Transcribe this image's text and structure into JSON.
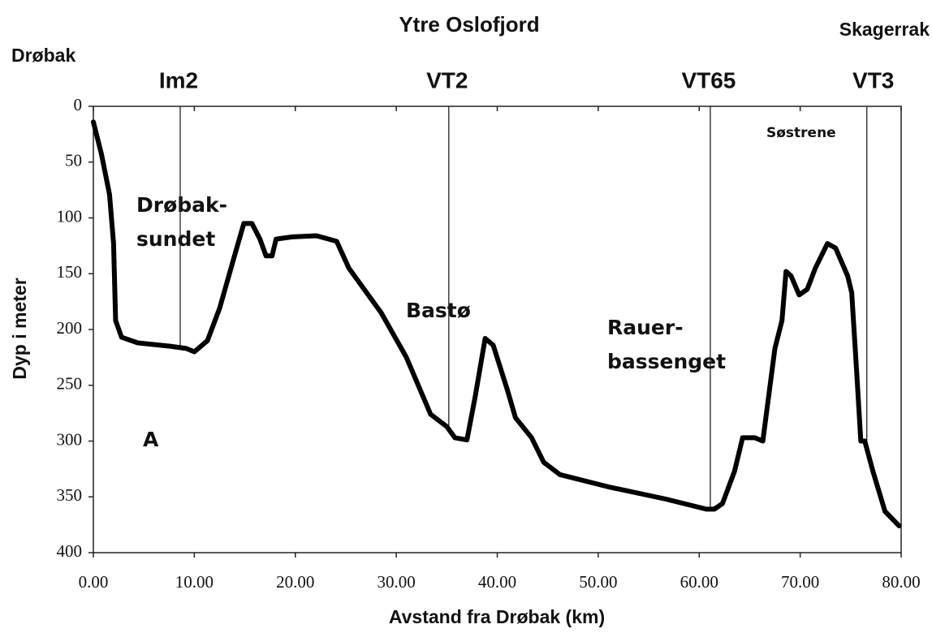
{
  "chart_data": {
    "type": "line",
    "title": "Ytre Oslofjord",
    "left_label": "Drøbak",
    "right_label": "Skagerrak",
    "xlabel": "Avstand fra Drøbak (km)",
    "ylabel": "Dyp i meter",
    "y_inverted": true,
    "xlim": [
      0,
      80
    ],
    "ylim": [
      0,
      400
    ],
    "xticks": [
      {
        "value": 0,
        "label": "0.00"
      },
      {
        "value": 10,
        "label": "10.00"
      },
      {
        "value": 20,
        "label": "20.00"
      },
      {
        "value": 30,
        "label": "30.00"
      },
      {
        "value": 40,
        "label": "40.00"
      },
      {
        "value": 50,
        "label": "50.00"
      },
      {
        "value": 60,
        "label": "60.00"
      },
      {
        "value": 70,
        "label": "70.00"
      },
      {
        "value": 80,
        "label": "80.00"
      }
    ],
    "yticks": [
      0,
      50,
      100,
      150,
      200,
      250,
      300,
      350,
      400
    ],
    "x": [
      0,
      0.8,
      1.6,
      2.0,
      2.2,
      2.8,
      4.4,
      7.6,
      9.2,
      10.0,
      11.3,
      12.5,
      14.1,
      14.9,
      15.7,
      16.5,
      17.1,
      17.7,
      18.1,
      19.7,
      22.1,
      24.1,
      25.3,
      28.5,
      31.0,
      33.4,
      35.0,
      35.8,
      37.0,
      37.8,
      38.8,
      39.6,
      41.0,
      41.8,
      43.4,
      44.6,
      46.2,
      51.0,
      56.7,
      60.7,
      61.5,
      62.3,
      63.5,
      64.3,
      65.5,
      66.3,
      67.5,
      68.2,
      68.6,
      69.1,
      69.9,
      70.7,
      71.5,
      72.7,
      73.5,
      74.7,
      75.1,
      75.6,
      76.0,
      76.4,
      77.2,
      78.4,
      79.8
    ],
    "series": [
      {
        "color": "#000000",
        "values": [
          14,
          43,
          79,
          123,
          192,
          207,
          212,
          215,
          217,
          220,
          210,
          181,
          130,
          105,
          105,
          119,
          134,
          134,
          119,
          117,
          116,
          121,
          145,
          185,
          225,
          276,
          287,
          297,
          299,
          261,
          208,
          214,
          254,
          279,
          297,
          319,
          330,
          341,
          352,
          361,
          361,
          356,
          327,
          297,
          297,
          300,
          217,
          192,
          148,
          152,
          169,
          164,
          145,
          123,
          127,
          152,
          167,
          239,
          300,
          300,
          327,
          363,
          376
        ]
      }
    ],
    "stations": [
      {
        "label": "Im2",
        "x": 8.6
      },
      {
        "label": "VT2",
        "x": 35.2
      },
      {
        "label": "VT65",
        "x": 61.1
      },
      {
        "label": "VT3",
        "x": 76.6
      }
    ],
    "annotations": [
      [
        "Drøbak-",
        "sundet"
      ],
      [
        "Bastø"
      ],
      [
        "Rauer-",
        "bassenget"
      ],
      [
        "A"
      ],
      [
        "Søstrene"
      ]
    ]
  }
}
